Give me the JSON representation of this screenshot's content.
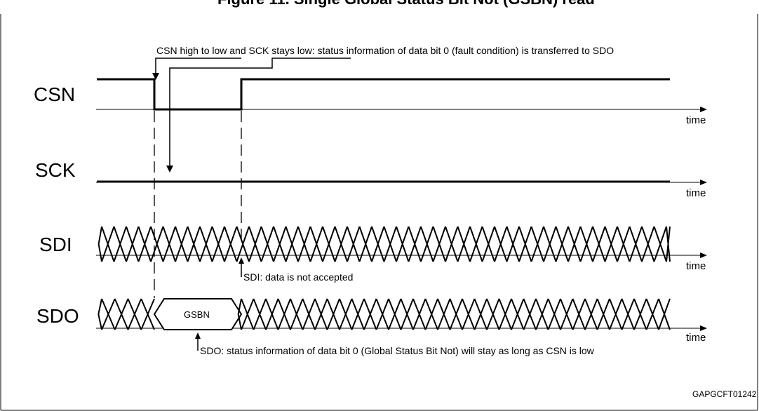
{
  "title": "Figure 11. Single Global Status Bit Not (GSBN) read",
  "title_visible_fragment": "Figure 11. Single Global Status Bit Not (GSBN) read",
  "signals": {
    "csn": "CSN",
    "sck": "SCK",
    "sdi": "SDI",
    "sdo": "SDO"
  },
  "time_label": "time",
  "annotations": {
    "csn_transition": "CSN high to low and SCK stays low: status information of data bit 0 (fault condition) is transferred to SDO",
    "sdi_note": "SDI: data is not accepted",
    "sdo_note": "SDO: status information of data bit 0 (Global Status Bit Not) will stay as long as CSN is low"
  },
  "gsbn_label": "GSBN",
  "figure_code": "GAPGCFT01242",
  "colors": {
    "line": "#000000",
    "background": "#ffffff"
  }
}
